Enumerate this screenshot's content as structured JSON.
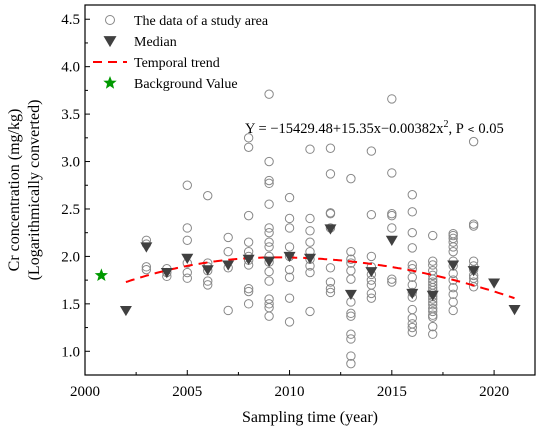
{
  "chart_data": {
    "type": "scatter",
    "xlabel": "Sampling time (year)",
    "ylabel_line1": "Cr concentration (mg/kg)",
    "ylabel_line2": "(Logarithmically converted)",
    "xlim": [
      2000,
      2022
    ],
    "ylim": [
      0.75,
      4.65
    ],
    "xticks": [
      2000,
      2005,
      2010,
      2015,
      2020
    ],
    "yticks": [
      1.0,
      1.5,
      2.0,
      2.5,
      3.0,
      3.5,
      4.0,
      4.5
    ],
    "ytick_labels": [
      "1.0",
      "1.5",
      "2.0",
      "2.5",
      "3.0",
      "3.5",
      "4.0",
      "4.5"
    ],
    "legend": {
      "placement": "top-left",
      "items": [
        {
          "label": "The data of a study area",
          "marker": "open-circle"
        },
        {
          "label": "Median",
          "marker": "down-triangle"
        },
        {
          "label": "Temporal trend",
          "marker": "dashed-line"
        },
        {
          "label": "Background Value",
          "marker": "star"
        }
      ]
    },
    "equation": {
      "prefix": "Y = −15429.48+15.35x−0.00382x",
      "sup": "2",
      "suffix": ", P﹤0.05"
    },
    "colors": {
      "data_points": "#888888",
      "median": "#404040",
      "trend": "#ff0000",
      "background": "#009900"
    },
    "series": [
      {
        "name": "The data of a study area",
        "points": [
          [
            2003,
            2.17
          ],
          [
            2003,
            2.13
          ],
          [
            2003,
            1.89
          ],
          [
            2003,
            1.86
          ],
          [
            2004,
            1.87
          ],
          [
            2004,
            1.83
          ],
          [
            2004,
            1.79
          ],
          [
            2005,
            2.75
          ],
          [
            2005,
            2.3
          ],
          [
            2005,
            2.17
          ],
          [
            2005,
            1.93
          ],
          [
            2005,
            1.83
          ],
          [
            2005,
            1.77
          ],
          [
            2006,
            2.64
          ],
          [
            2006,
            1.93
          ],
          [
            2006,
            1.89
          ],
          [
            2006,
            1.85
          ],
          [
            2006,
            1.74
          ],
          [
            2006,
            1.7
          ],
          [
            2007,
            2.2
          ],
          [
            2007,
            2.05
          ],
          [
            2007,
            1.88
          ],
          [
            2007,
            1.43
          ],
          [
            2008,
            3.25
          ],
          [
            2008,
            3.15
          ],
          [
            2008,
            2.43
          ],
          [
            2008,
            2.15
          ],
          [
            2008,
            2.05
          ],
          [
            2008,
            2.0
          ],
          [
            2008,
            1.96
          ],
          [
            2008,
            1.91
          ],
          [
            2008,
            1.66
          ],
          [
            2008,
            1.63
          ],
          [
            2008,
            1.5
          ],
          [
            2009,
            3.71
          ],
          [
            2009,
            3.0
          ],
          [
            2009,
            2.8
          ],
          [
            2009,
            2.77
          ],
          [
            2009,
            2.55
          ],
          [
            2009,
            2.3
          ],
          [
            2009,
            2.25
          ],
          [
            2009,
            2.15
          ],
          [
            2009,
            2.1
          ],
          [
            2009,
            2.0
          ],
          [
            2009,
            1.94
          ],
          [
            2009,
            1.84
          ],
          [
            2009,
            1.74
          ],
          [
            2009,
            1.55
          ],
          [
            2009,
            1.5
          ],
          [
            2009,
            1.46
          ],
          [
            2009,
            1.37
          ],
          [
            2010,
            2.62
          ],
          [
            2010,
            2.4
          ],
          [
            2010,
            2.3
          ],
          [
            2010,
            2.1
          ],
          [
            2010,
            2.0
          ],
          [
            2010,
            1.86
          ],
          [
            2010,
            1.78
          ],
          [
            2010,
            1.56
          ],
          [
            2010,
            1.31
          ],
          [
            2011,
            3.13
          ],
          [
            2011,
            2.4
          ],
          [
            2011,
            2.27
          ],
          [
            2011,
            2.15
          ],
          [
            2011,
            2.05
          ],
          [
            2011,
            1.97
          ],
          [
            2011,
            1.9
          ],
          [
            2011,
            1.83
          ],
          [
            2011,
            1.42
          ],
          [
            2012,
            3.14
          ],
          [
            2012,
            2.87
          ],
          [
            2012,
            2.46
          ],
          [
            2012,
            2.45
          ],
          [
            2012,
            2.3
          ],
          [
            2012,
            1.88
          ],
          [
            2012,
            1.73
          ],
          [
            2012,
            1.66
          ],
          [
            2012,
            1.62
          ],
          [
            2013,
            2.82
          ],
          [
            2013,
            2.05
          ],
          [
            2013,
            1.97
          ],
          [
            2013,
            1.93
          ],
          [
            2013,
            1.85
          ],
          [
            2013,
            1.76
          ],
          [
            2013,
            1.52
          ],
          [
            2013,
            1.4
          ],
          [
            2013,
            1.37
          ],
          [
            2013,
            1.18
          ],
          [
            2013,
            1.13
          ],
          [
            2013,
            0.95
          ],
          [
            2013,
            0.87
          ],
          [
            2014,
            3.11
          ],
          [
            2014,
            2.44
          ],
          [
            2014,
            2.0
          ],
          [
            2014,
            1.89
          ],
          [
            2014,
            1.81
          ],
          [
            2014,
            1.75
          ],
          [
            2014,
            1.7
          ],
          [
            2014,
            1.61
          ],
          [
            2014,
            1.56
          ],
          [
            2015,
            3.66
          ],
          [
            2015,
            2.88
          ],
          [
            2015,
            2.45
          ],
          [
            2015,
            2.43
          ],
          [
            2015,
            2.3
          ],
          [
            2015,
            1.76
          ],
          [
            2015,
            1.73
          ],
          [
            2016,
            2.65
          ],
          [
            2016,
            2.47
          ],
          [
            2016,
            2.25
          ],
          [
            2016,
            2.09
          ],
          [
            2016,
            1.91
          ],
          [
            2016,
            1.87
          ],
          [
            2016,
            1.78
          ],
          [
            2016,
            1.7
          ],
          [
            2016,
            1.62
          ],
          [
            2016,
            1.57
          ],
          [
            2016,
            1.44
          ],
          [
            2016,
            1.35
          ],
          [
            2016,
            1.29
          ],
          [
            2016,
            1.25
          ],
          [
            2016,
            1.2
          ],
          [
            2017,
            2.22
          ],
          [
            2017,
            1.95
          ],
          [
            2017,
            1.91
          ],
          [
            2017,
            1.85
          ],
          [
            2017,
            1.8
          ],
          [
            2017,
            1.76
          ],
          [
            2017,
            1.73
          ],
          [
            2017,
            1.7
          ],
          [
            2017,
            1.67
          ],
          [
            2017,
            1.64
          ],
          [
            2017,
            1.61
          ],
          [
            2017,
            1.58
          ],
          [
            2017,
            1.55
          ],
          [
            2017,
            1.52
          ],
          [
            2017,
            1.49
          ],
          [
            2017,
            1.45
          ],
          [
            2017,
            1.42
          ],
          [
            2017,
            1.38
          ],
          [
            2017,
            1.36
          ],
          [
            2017,
            1.26
          ],
          [
            2017,
            1.18
          ],
          [
            2018,
            2.24
          ],
          [
            2018,
            2.22
          ],
          [
            2018,
            2.19
          ],
          [
            2018,
            2.15
          ],
          [
            2018,
            2.1
          ],
          [
            2018,
            2.05
          ],
          [
            2018,
            1.95
          ],
          [
            2018,
            1.9
          ],
          [
            2018,
            1.82
          ],
          [
            2018,
            1.75
          ],
          [
            2018,
            1.67
          ],
          [
            2018,
            1.6
          ],
          [
            2018,
            1.52
          ],
          [
            2018,
            1.43
          ],
          [
            2019,
            3.21
          ],
          [
            2019,
            2.34
          ],
          [
            2019,
            2.32
          ],
          [
            2019,
            1.95
          ],
          [
            2019,
            1.9
          ],
          [
            2019,
            1.86
          ],
          [
            2019,
            1.8
          ],
          [
            2019,
            1.77
          ],
          [
            2019,
            1.73
          ],
          [
            2019,
            1.68
          ]
        ]
      },
      {
        "name": "Median",
        "points": [
          [
            2002,
            1.43
          ],
          [
            2003,
            2.1
          ],
          [
            2004,
            1.83
          ],
          [
            2005,
            1.98
          ],
          [
            2006,
            1.86
          ],
          [
            2007,
            1.91
          ],
          [
            2008,
            1.97
          ],
          [
            2009,
            1.95
          ],
          [
            2010,
            2.0
          ],
          [
            2011,
            1.98
          ],
          [
            2012,
            2.29
          ],
          [
            2013,
            1.6
          ],
          [
            2014,
            1.84
          ],
          [
            2015,
            2.17
          ],
          [
            2016,
            1.61
          ],
          [
            2017,
            1.59
          ],
          [
            2018,
            1.91
          ],
          [
            2019,
            1.85
          ],
          [
            2020,
            1.72
          ],
          [
            2021,
            1.44
          ]
        ]
      },
      {
        "name": "Background Value",
        "points": [
          [
            2000.8,
            1.8
          ]
        ]
      }
    ],
    "trend": {
      "name": "Temporal trend",
      "x_range": [
        2002,
        2021
      ],
      "peak": {
        "x": 2009.3,
        "y": 1.99
      },
      "endpoints": {
        "start": 1.73,
        "end": 1.56
      }
    }
  }
}
